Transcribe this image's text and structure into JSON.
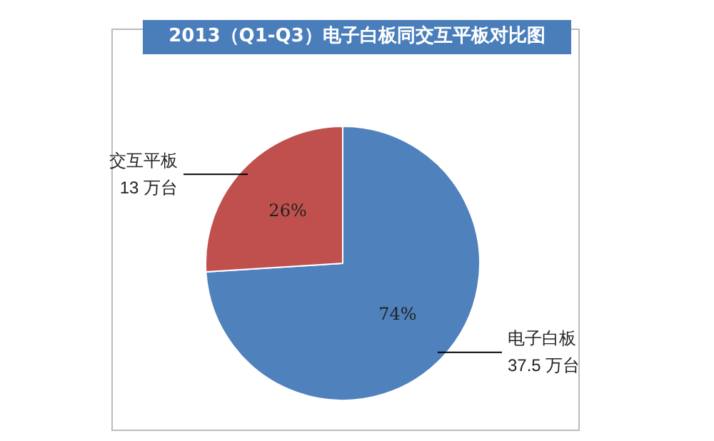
{
  "chart_data": {
    "type": "pie",
    "title": "2013（Q1-Q3）电子白板同交互平板对比图",
    "categories": [
      "电子白板",
      "交互平板"
    ],
    "values": [
      74,
      26
    ],
    "colors": [
      "#4f81bd",
      "#c0504d"
    ],
    "value_labels": [
      "74%",
      "26%"
    ],
    "annotations": [
      "37.5 万台",
      "13 万台"
    ],
    "legend": false
  }
}
